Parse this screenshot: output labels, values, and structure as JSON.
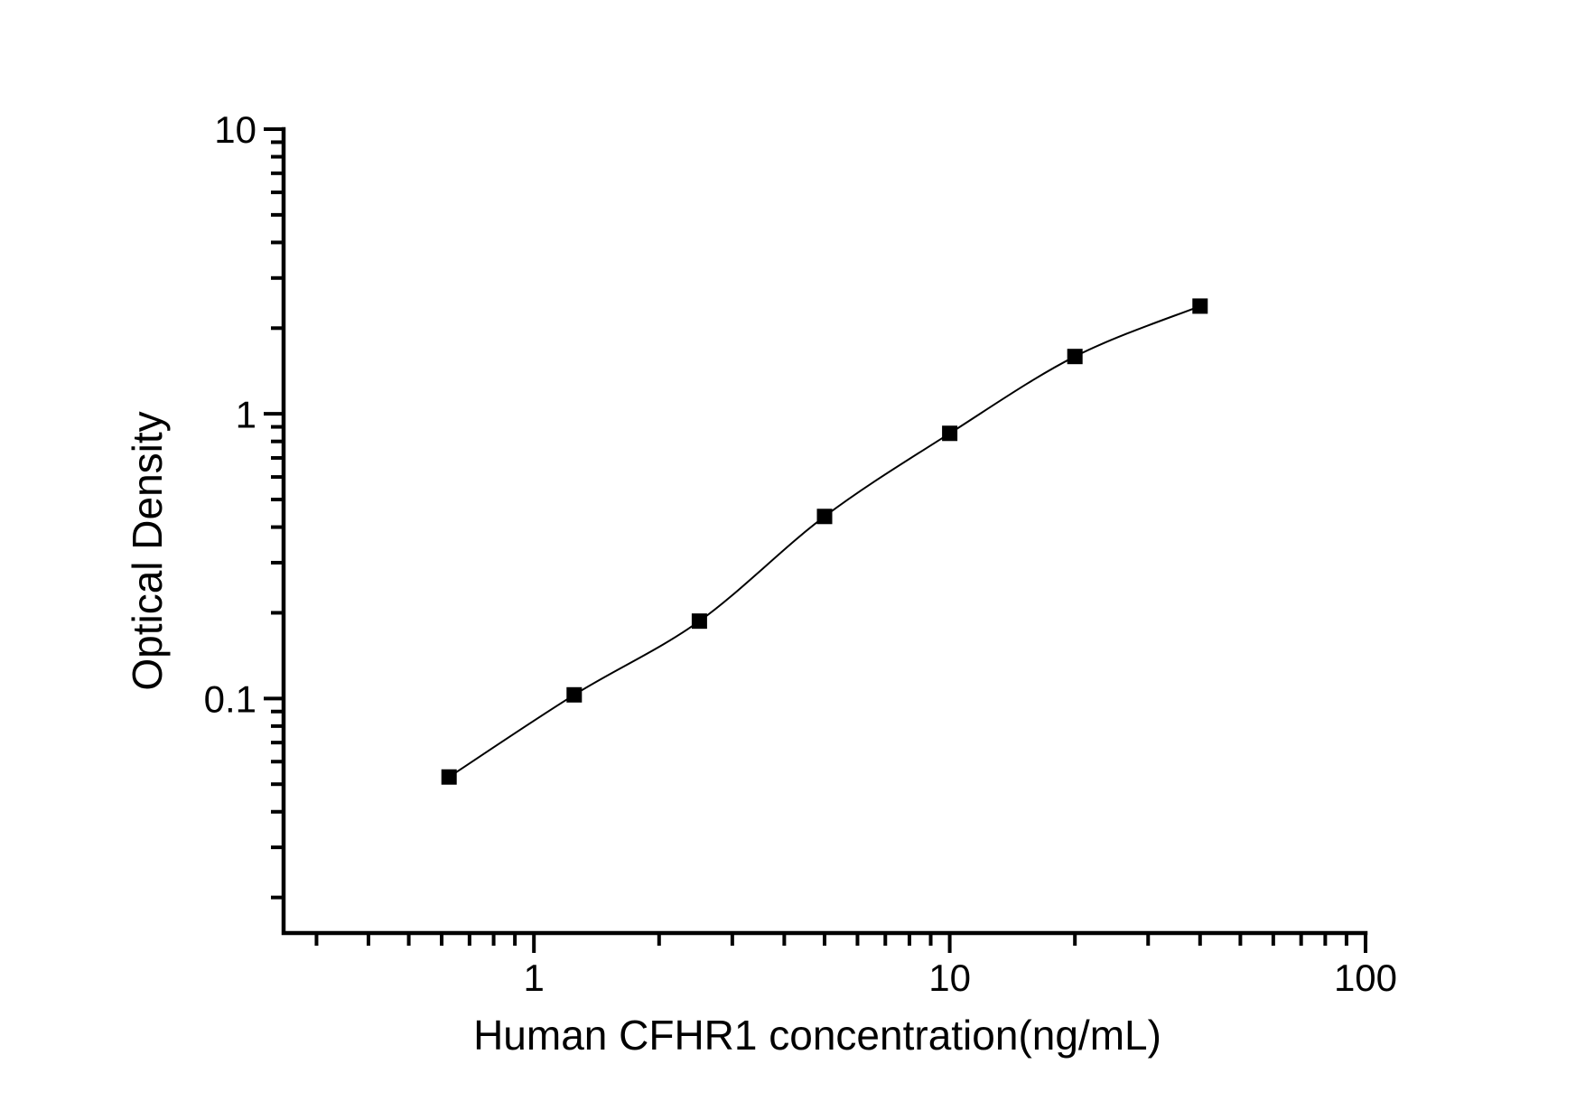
{
  "chart_data": {
    "type": "scatter",
    "title": "",
    "xlabel": "Human CFHR1 concentration(ng/mL)",
    "ylabel": "Optical Density",
    "x_scale": "log",
    "y_scale": "log",
    "xlim": [
      0.25,
      100
    ],
    "ylim": [
      0.015,
      10
    ],
    "grid": false,
    "legend": "none",
    "axis_color": "#000000",
    "background_color": "#ffffff",
    "x_ticks": [
      {
        "value": 1,
        "label": "1"
      },
      {
        "value": 10,
        "label": "10"
      },
      {
        "value": 100,
        "label": "100"
      }
    ],
    "y_ticks": [
      {
        "value": 0.1,
        "label": "0.1"
      },
      {
        "value": 1,
        "label": "1"
      },
      {
        "value": 10,
        "label": "10"
      }
    ],
    "series": [
      {
        "marker": "filled-square",
        "line": "smooth",
        "color": "#000000",
        "points": [
          {
            "x": 0.625,
            "y": 0.053
          },
          {
            "x": 1.25,
            "y": 0.103
          },
          {
            "x": 2.5,
            "y": 0.187
          },
          {
            "x": 5,
            "y": 0.436
          },
          {
            "x": 10,
            "y": 0.854
          },
          {
            "x": 20,
            "y": 1.59
          },
          {
            "x": 40,
            "y": 2.39
          }
        ]
      }
    ]
  }
}
